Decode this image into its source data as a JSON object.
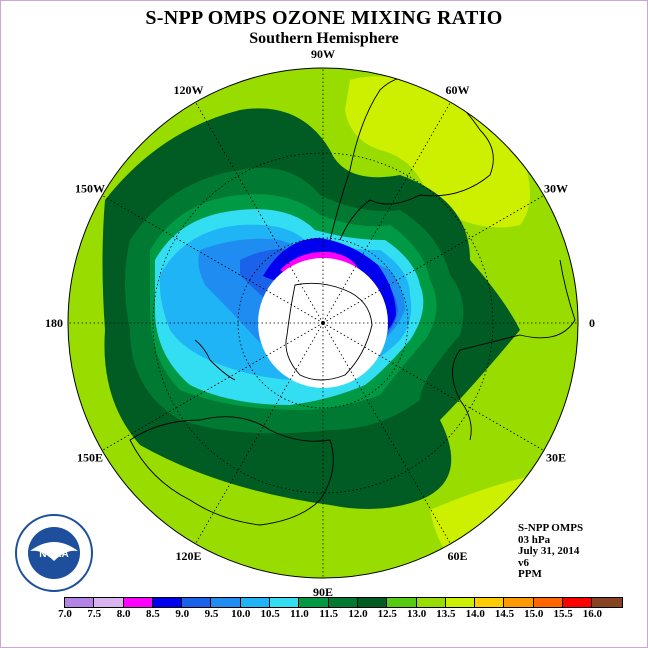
{
  "title": "S-NPP OMPS OZONE MIXING RATIO",
  "subtitle": "Southern Hemisphere",
  "longitude_labels": [
    {
      "text": "90W",
      "deg": -90
    },
    {
      "text": "60W",
      "deg": -60
    },
    {
      "text": "30W",
      "deg": -30
    },
    {
      "text": "0",
      "deg": 0
    },
    {
      "text": "30E",
      "deg": 30
    },
    {
      "text": "60E",
      "deg": 60
    },
    {
      "text": "90E",
      "deg": 90
    },
    {
      "text": "120E",
      "deg": 120
    },
    {
      "text": "150E",
      "deg": 150
    },
    {
      "text": "180",
      "deg": 180
    },
    {
      "text": "150W",
      "deg": -150
    },
    {
      "text": "120W",
      "deg": -120
    }
  ],
  "info": {
    "line1": "S-NPP OMPS",
    "line2": "03 hPa",
    "line3": "July 31, 2014",
    "line4": "v6",
    "line5": "PPM"
  },
  "colorbar": {
    "labels": [
      "7.0",
      "7.5",
      "8.0",
      "8.5",
      "9.0",
      "9.5",
      "10.0",
      "10.5",
      "11.0",
      "11.5",
      "12.0",
      "12.5",
      "13.0",
      "13.5",
      "14.0",
      "14.5",
      "15.0",
      "15.5",
      "16.0"
    ],
    "colors": [
      "#b582e6",
      "#d9b4ee",
      "#ff00ff",
      "#0000ee",
      "#1a62ea",
      "#1e8cf0",
      "#1eb4f5",
      "#33ddf2",
      "#009944",
      "#007a33",
      "#005c23",
      "#55cc11",
      "#99dd00",
      "#ccf000",
      "#ffcc00",
      "#ff9900",
      "#ff6600",
      "#ff0000",
      "#884422"
    ]
  },
  "logo_text": "NOAA",
  "logo_ring_text": "NATIONAL OCEANIC AND ATMOSPHERIC ADMINISTRATION · U.S. DEPARTMENT OF COMMERCE"
}
